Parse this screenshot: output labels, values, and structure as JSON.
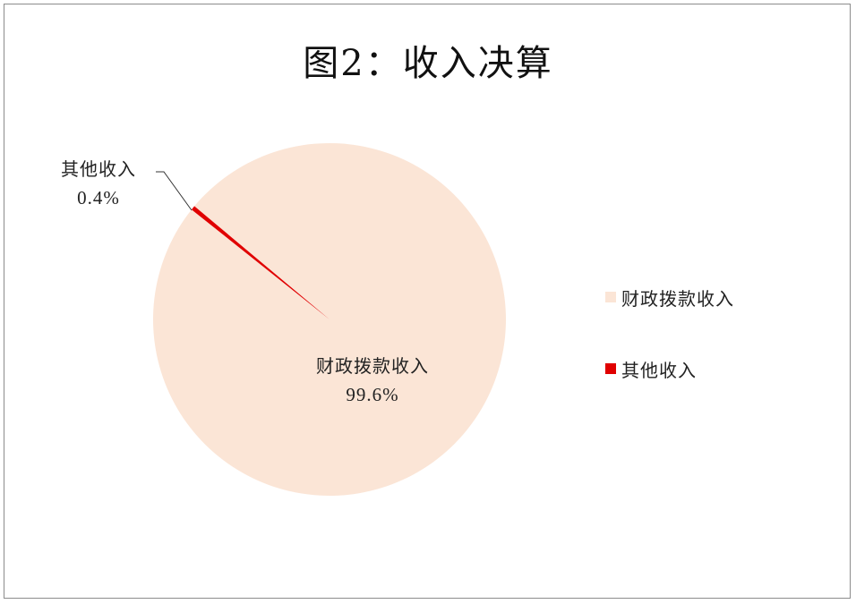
{
  "chart_data": {
    "type": "pie",
    "title": "图2：收入决算",
    "slices": [
      {
        "name": "财政拨款收入",
        "percent_label": "99.6%",
        "value": 99.6,
        "color": "#fbe5d6"
      },
      {
        "name": "其他收入",
        "percent_label": "0.4%",
        "value": 0.4,
        "color": "#e00000"
      }
    ],
    "legend_position": "right"
  }
}
